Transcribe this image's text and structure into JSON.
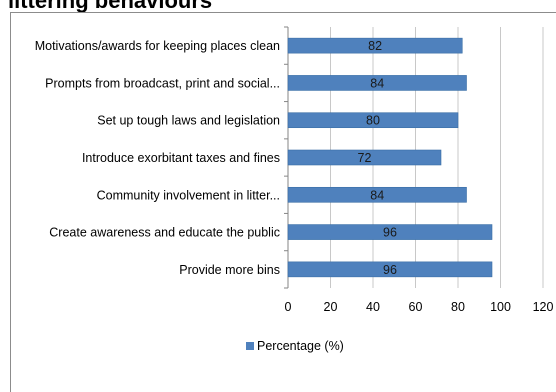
{
  "header": {
    "title": "littering behaviours"
  },
  "colors": {
    "bar": "#4f81bd",
    "bar_border": "#3a6ea5",
    "grid": "#c8c8c8",
    "axis": "#868686"
  },
  "chart_data": {
    "type": "bar",
    "orientation": "horizontal",
    "categories": [
      "Motivations/awards for keeping places clean",
      "Prompts from broadcast, print and social...",
      "Set up tough laws and legislation",
      "Introduce exorbitant taxes and fines",
      "Community involvement in litter...",
      "Create awareness and educate the public",
      "Provide more bins"
    ],
    "series": [
      {
        "name": "Percentage (%)",
        "values": [
          82,
          84,
          80,
          72,
          84,
          96,
          96
        ]
      }
    ],
    "data_labels": [
      "82",
      "84",
      "80",
      "72",
      "84",
      "96",
      "96"
    ],
    "xticks": [
      "0",
      "20",
      "40",
      "60",
      "80",
      "100",
      "120"
    ],
    "xlim": [
      0,
      120
    ],
    "grid": true,
    "legend": "bottom"
  }
}
